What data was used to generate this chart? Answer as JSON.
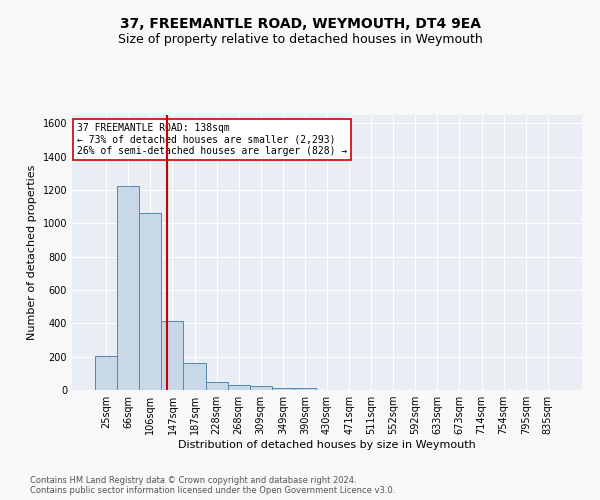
{
  "title": "37, FREEMANTLE ROAD, WEYMOUTH, DT4 9EA",
  "subtitle": "Size of property relative to detached houses in Weymouth",
  "xlabel": "Distribution of detached houses by size in Weymouth",
  "ylabel": "Number of detached properties",
  "bin_labels": [
    "25sqm",
    "66sqm",
    "106sqm",
    "147sqm",
    "187sqm",
    "228sqm",
    "268sqm",
    "309sqm",
    "349sqm",
    "390sqm",
    "430sqm",
    "471sqm",
    "511sqm",
    "552sqm",
    "592sqm",
    "633sqm",
    "673sqm",
    "714sqm",
    "754sqm",
    "795sqm",
    "835sqm"
  ],
  "bar_values": [
    205,
    1225,
    1065,
    415,
    165,
    50,
    28,
    22,
    15,
    15,
    0,
    0,
    0,
    0,
    0,
    0,
    0,
    0,
    0,
    0,
    0
  ],
  "bar_color": "#c8d8e8",
  "bar_edge_color": "#5588aa",
  "vline_x": 2.75,
  "vline_color": "#cc0000",
  "annotation_text": "37 FREEMANTLE ROAD: 138sqm\n← 73% of detached houses are smaller (2,293)\n26% of semi-detached houses are larger (828) →",
  "annotation_box_color": "#ffffff",
  "annotation_box_edge": "#cc0000",
  "ylim": [
    0,
    1650
  ],
  "yticks": [
    0,
    200,
    400,
    600,
    800,
    1000,
    1200,
    1400,
    1600
  ],
  "background_color": "#e8eef4",
  "grid_color": "#ffffff",
  "footer_text": "Contains HM Land Registry data © Crown copyright and database right 2024.\nContains public sector information licensed under the Open Government Licence v3.0.",
  "title_fontsize": 10,
  "subtitle_fontsize": 9,
  "xlabel_fontsize": 8,
  "ylabel_fontsize": 8,
  "tick_fontsize": 7,
  "footer_fontsize": 6
}
